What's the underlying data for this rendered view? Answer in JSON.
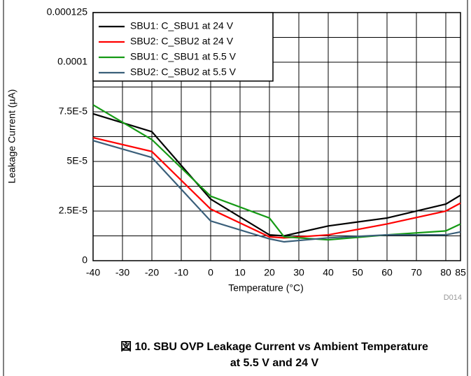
{
  "chart_data": {
    "type": "line",
    "caption": [
      "図 10. SBU OVP Leakage Current vs Ambient Temperature",
      "at 5.5 V and 24 V"
    ],
    "code": "D014",
    "xlabel": "Temperature (°C)",
    "ylabel": "Leakage Current (µA)",
    "x": [
      -40,
      -20,
      0,
      20,
      25,
      40,
      60,
      80,
      85
    ],
    "xlim": [
      -40,
      85
    ],
    "xticks": [
      -40,
      -30,
      -20,
      -10,
      0,
      10,
      20,
      30,
      40,
      50,
      60,
      70,
      80,
      85
    ],
    "ylim": [
      0,
      0.000125
    ],
    "yticks": [
      0,
      {
        "value": 2.5e-05,
        "label": "2.5E-5"
      },
      {
        "value": 5e-05,
        "label": "5E-5"
      },
      {
        "value": 7.5e-05,
        "label": "7.5E-5"
      },
      0.0001,
      0.000125
    ],
    "ygrid": [
      1.25e-05,
      3.75e-05,
      6.25e-05,
      8.75e-05,
      0.0001125
    ],
    "grid": true,
    "legend": "upper left",
    "series": [
      {
        "name": "SBU1: C_SBU1 at 24 V",
        "color": "#000000",
        "values": [
          7.4e-05,
          6.5e-05,
          3.1e-05,
          1.3e-05,
          1.25e-05,
          1.75e-05,
          2.15e-05,
          2.85e-05,
          3.3e-05
        ]
      },
      {
        "name": "SBU2: C_SBU2 at 24 V",
        "color": "#ff0000",
        "values": [
          6.2e-05,
          5.5e-05,
          2.6e-05,
          1.2e-05,
          1.15e-05,
          1.3e-05,
          1.85e-05,
          2.5e-05,
          2.9e-05
        ]
      },
      {
        "name": "SBU1: C_SBU1 at 5.5 V",
        "color": "#159a15",
        "values": [
          7.85e-05,
          6.1e-05,
          3.25e-05,
          2.15e-05,
          1.2e-05,
          1.05e-05,
          1.3e-05,
          1.5e-05,
          1.85e-05
        ]
      },
      {
        "name": "SBU2: C_SBU2 at 5.5 V",
        "color": "#3a5f7a",
        "values": [
          6.05e-05,
          5.2e-05,
          2e-05,
          1.1e-05,
          9.5e-06,
          1.15e-05,
          1.3e-05,
          1.3e-05,
          1.45e-05
        ]
      }
    ]
  }
}
